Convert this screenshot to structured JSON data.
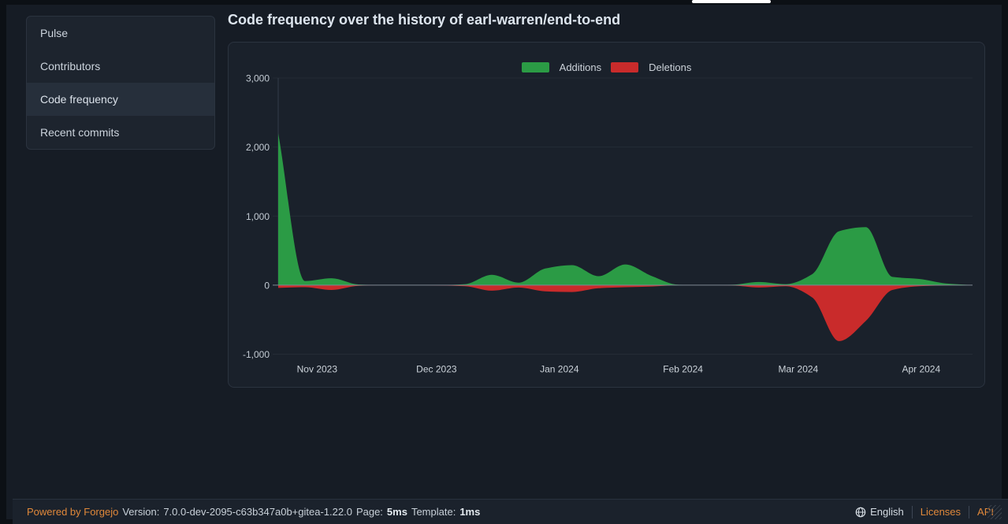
{
  "window": {
    "tab_indicator": {
      "present": true
    }
  },
  "sidebar": {
    "items": [
      {
        "label": "Pulse",
        "active": false
      },
      {
        "label": "Contributors",
        "active": false
      },
      {
        "label": "Code frequency",
        "active": true
      },
      {
        "label": "Recent commits",
        "active": false
      }
    ]
  },
  "header": {
    "title": "Code frequency over the history of earl-warren/end-to-end"
  },
  "chart_data": {
    "type": "area",
    "title": "Code frequency",
    "legend_position": "top-center",
    "grid": "horizontal",
    "ylim": [
      -1000,
      3000
    ],
    "y_ticks": [
      {
        "label": "3,000",
        "value": 3000
      },
      {
        "label": "2,000",
        "value": 2000
      },
      {
        "label": "1,000",
        "value": 1000
      },
      {
        "label": "0",
        "value": 0
      },
      {
        "label": "-1,000",
        "value": -1000
      }
    ],
    "x_ticks": [
      {
        "label": "Nov 2023",
        "pos": 0.056
      },
      {
        "label": "Dec 2023",
        "pos": 0.228
      },
      {
        "label": "Jan 2024",
        "pos": 0.405
      },
      {
        "label": "Feb 2024",
        "pos": 0.583
      },
      {
        "label": "Mar 2024",
        "pos": 0.749
      },
      {
        "label": "Apr 2024",
        "pos": 0.926
      }
    ],
    "legend": [
      {
        "name": "Additions",
        "color": "#2b9b45"
      },
      {
        "name": "Deletions",
        "color": "#c92b2b"
      }
    ],
    "x_unit": "fraction of timeline (weekly samples, Oct 2023 - Apr 2024)",
    "series": [
      {
        "name": "Additions",
        "color": "#2b9b45",
        "points": [
          [
            0,
            2200
          ],
          [
            0.0385,
            60
          ],
          [
            0.0769,
            100
          ],
          [
            0.1154,
            10
          ],
          [
            0.1538,
            0
          ],
          [
            0.1923,
            0
          ],
          [
            0.2308,
            0
          ],
          [
            0.2692,
            15
          ],
          [
            0.3077,
            150
          ],
          [
            0.3462,
            35
          ],
          [
            0.3846,
            240
          ],
          [
            0.4231,
            290
          ],
          [
            0.4615,
            130
          ],
          [
            0.5,
            300
          ],
          [
            0.5385,
            130
          ],
          [
            0.5769,
            5
          ],
          [
            0.6154,
            0
          ],
          [
            0.6538,
            5
          ],
          [
            0.6923,
            45
          ],
          [
            0.7308,
            15
          ],
          [
            0.7692,
            160
          ],
          [
            0.8077,
            780
          ],
          [
            0.8462,
            840
          ],
          [
            0.8846,
            120
          ],
          [
            0.9231,
            90
          ],
          [
            0.9615,
            25
          ],
          [
            1,
            0
          ]
        ]
      },
      {
        "name": "Deletions",
        "color": "#c92b2b",
        "points": [
          [
            0,
            -40
          ],
          [
            0.0385,
            -30
          ],
          [
            0.0769,
            -70
          ],
          [
            0.1154,
            -10
          ],
          [
            0.1538,
            0
          ],
          [
            0.1923,
            0
          ],
          [
            0.2308,
            -5
          ],
          [
            0.2692,
            -15
          ],
          [
            0.3077,
            -80
          ],
          [
            0.3462,
            -35
          ],
          [
            0.3846,
            -90
          ],
          [
            0.4231,
            -100
          ],
          [
            0.4615,
            -45
          ],
          [
            0.5,
            -30
          ],
          [
            0.5385,
            -20
          ],
          [
            0.5769,
            0
          ],
          [
            0.6154,
            0
          ],
          [
            0.6538,
            -5
          ],
          [
            0.6923,
            -35
          ],
          [
            0.7308,
            -15
          ],
          [
            0.7692,
            -180
          ],
          [
            0.8077,
            -810
          ],
          [
            0.8462,
            -520
          ],
          [
            0.8846,
            -70
          ],
          [
            0.9231,
            -15
          ],
          [
            0.9615,
            -5
          ],
          [
            1,
            0
          ]
        ]
      }
    ]
  },
  "footer": {
    "powered_by": "Powered by Forgejo",
    "version_label": "Version:",
    "version": "7.0.0-dev-2095-c63b347a0b+gitea-1.22.0",
    "page_label": "Page:",
    "page_time": "5ms",
    "template_label": "Template:",
    "template_time": "1ms",
    "language": "English",
    "licenses": "Licenses",
    "api": "API"
  },
  "colors": {
    "accent_orange": "#e0883a",
    "additions_green": "#2b9b45",
    "deletions_red": "#c92b2b",
    "tab_indicator": "#ffffff",
    "page_background": "#161c25",
    "panel_background": "#1a212b"
  }
}
